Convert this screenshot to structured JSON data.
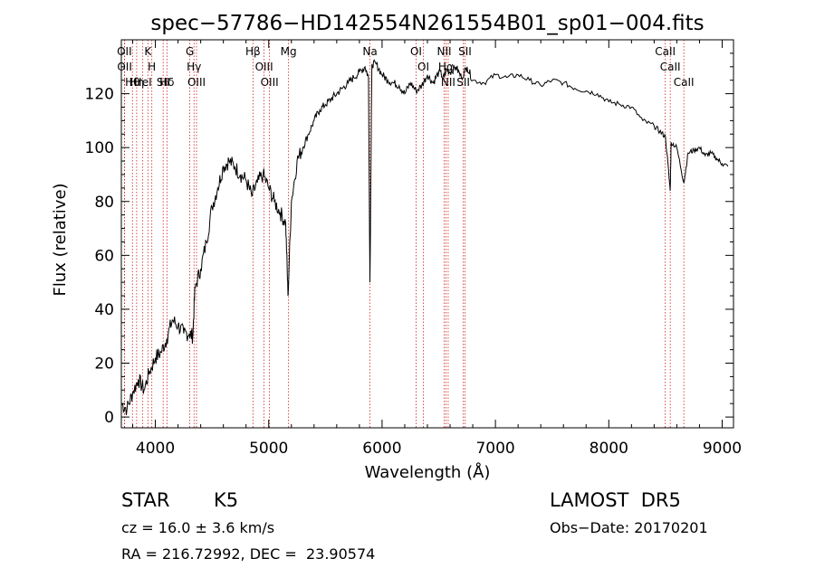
{
  "chart_data": {
    "type": "line",
    "title": "spec−57786−HD142554N261554B01_sp01−004.fits",
    "xlabel": "Wavelength (Å)",
    "ylabel": "Flux (relative)",
    "xlim": [
      3700,
      9100
    ],
    "ylim": [
      -4,
      140
    ],
    "x_ticks": [
      4000,
      5000,
      6000,
      7000,
      8000,
      9000
    ],
    "y_ticks": [
      0,
      20,
      40,
      60,
      80,
      100,
      120
    ],
    "grid": false,
    "series": [
      {
        "x": [
          3700,
          3750,
          3800,
          3850,
          3900,
          3950,
          4000,
          4050,
          4100,
          4150,
          4200,
          4250,
          4300,
          4330,
          4350,
          4400,
          4450,
          4500,
          4550,
          4600,
          4650,
          4700,
          4750,
          4800,
          4850,
          4900,
          4950,
          5000,
          5050,
          5100,
          5150,
          5170,
          5200,
          5250,
          5300,
          5350,
          5400,
          5450,
          5500,
          5550,
          5600,
          5650,
          5700,
          5750,
          5800,
          5850,
          5880,
          5893,
          5910,
          5950,
          6000,
          6050,
          6100,
          6150,
          6200,
          6250,
          6300,
          6350,
          6400,
          6450,
          6500,
          6550,
          6563,
          6600,
          6650,
          6700,
          6750,
          6800,
          6900,
          7000,
          7100,
          7200,
          7300,
          7400,
          7500,
          7600,
          7700,
          7800,
          7900,
          8000,
          8100,
          8200,
          8300,
          8400,
          8450,
          8500,
          8542,
          8550,
          8600,
          8662,
          8700,
          8750,
          8800,
          8850,
          8900,
          8950,
          9000,
          9050
        ],
        "y": [
          5,
          3,
          9,
          14,
          10,
          17,
          22,
          24,
          29,
          36,
          34,
          31,
          31,
          30,
          48,
          55,
          65,
          78,
          85,
          93,
          95,
          93,
          90,
          88,
          82,
          87,
          90,
          85,
          80,
          76,
          72,
          45,
          80,
          95,
          100,
          105,
          110,
          114,
          116,
          118,
          120,
          122,
          124,
          126,
          128,
          130,
          126,
          50,
          131,
          131,
          127,
          125,
          124,
          123,
          120,
          124,
          121,
          123,
          127,
          124,
          128,
          126,
          129,
          128,
          130,
          126,
          130,
          125,
          124,
          127,
          126,
          127,
          125,
          123,
          125,
          124,
          122,
          121,
          120,
          117,
          116,
          115,
          110,
          108,
          106,
          104,
          84,
          102,
          100,
          87,
          98,
          99,
          100,
          97,
          98,
          96,
          94,
          93
        ]
      }
    ],
    "line_annotations": [
      {
        "label": "Hθ",
        "x": 3798
      },
      {
        "label": "OII",
        "x": 3727
      },
      {
        "label": "OII",
        "x": 3729
      },
      {
        "label": "HeΙ",
        "x": 3889
      },
      {
        "label": "Hη",
        "x": 3835
      },
      {
        "label": "K",
        "x": 3934
      },
      {
        "label": "H",
        "x": 3969
      },
      {
        "label": "SII",
        "x": 4069
      },
      {
        "label": "Hδ",
        "x": 4102
      },
      {
        "label": "OIII",
        "x": 4363
      },
      {
        "label": "Hγ",
        "x": 4341
      },
      {
        "label": "G",
        "x": 4304
      },
      {
        "label": "Hβ",
        "x": 4861
      },
      {
        "label": "OIII",
        "x": 4959
      },
      {
        "label": "OIII",
        "x": 5007
      },
      {
        "label": "Mg",
        "x": 5175
      },
      {
        "label": "Na",
        "x": 5893
      },
      {
        "label": "OI",
        "x": 6300
      },
      {
        "label": "OI",
        "x": 6364
      },
      {
        "label": "NII",
        "x": 6548
      },
      {
        "label": "Hα",
        "x": 6563
      },
      {
        "label": "NII",
        "x": 6583
      },
      {
        "label": "SII",
        "x": 6716
      },
      {
        "label": "SII",
        "x": 6731
      },
      {
        "label": "CaII",
        "x": 8498
      },
      {
        "label": "CaII",
        "x": 8542
      },
      {
        "label": "CaII",
        "x": 8662
      }
    ]
  },
  "info": {
    "star_label": "STAR",
    "spectral_type": "K5",
    "survey": "LAMOST  DR5",
    "cz": "cz = 16.0 ± 3.6 km/s",
    "obs_date": "Obs−Date: 20170201",
    "coords": "RA = 216.72992, DEC =  23.90574"
  }
}
